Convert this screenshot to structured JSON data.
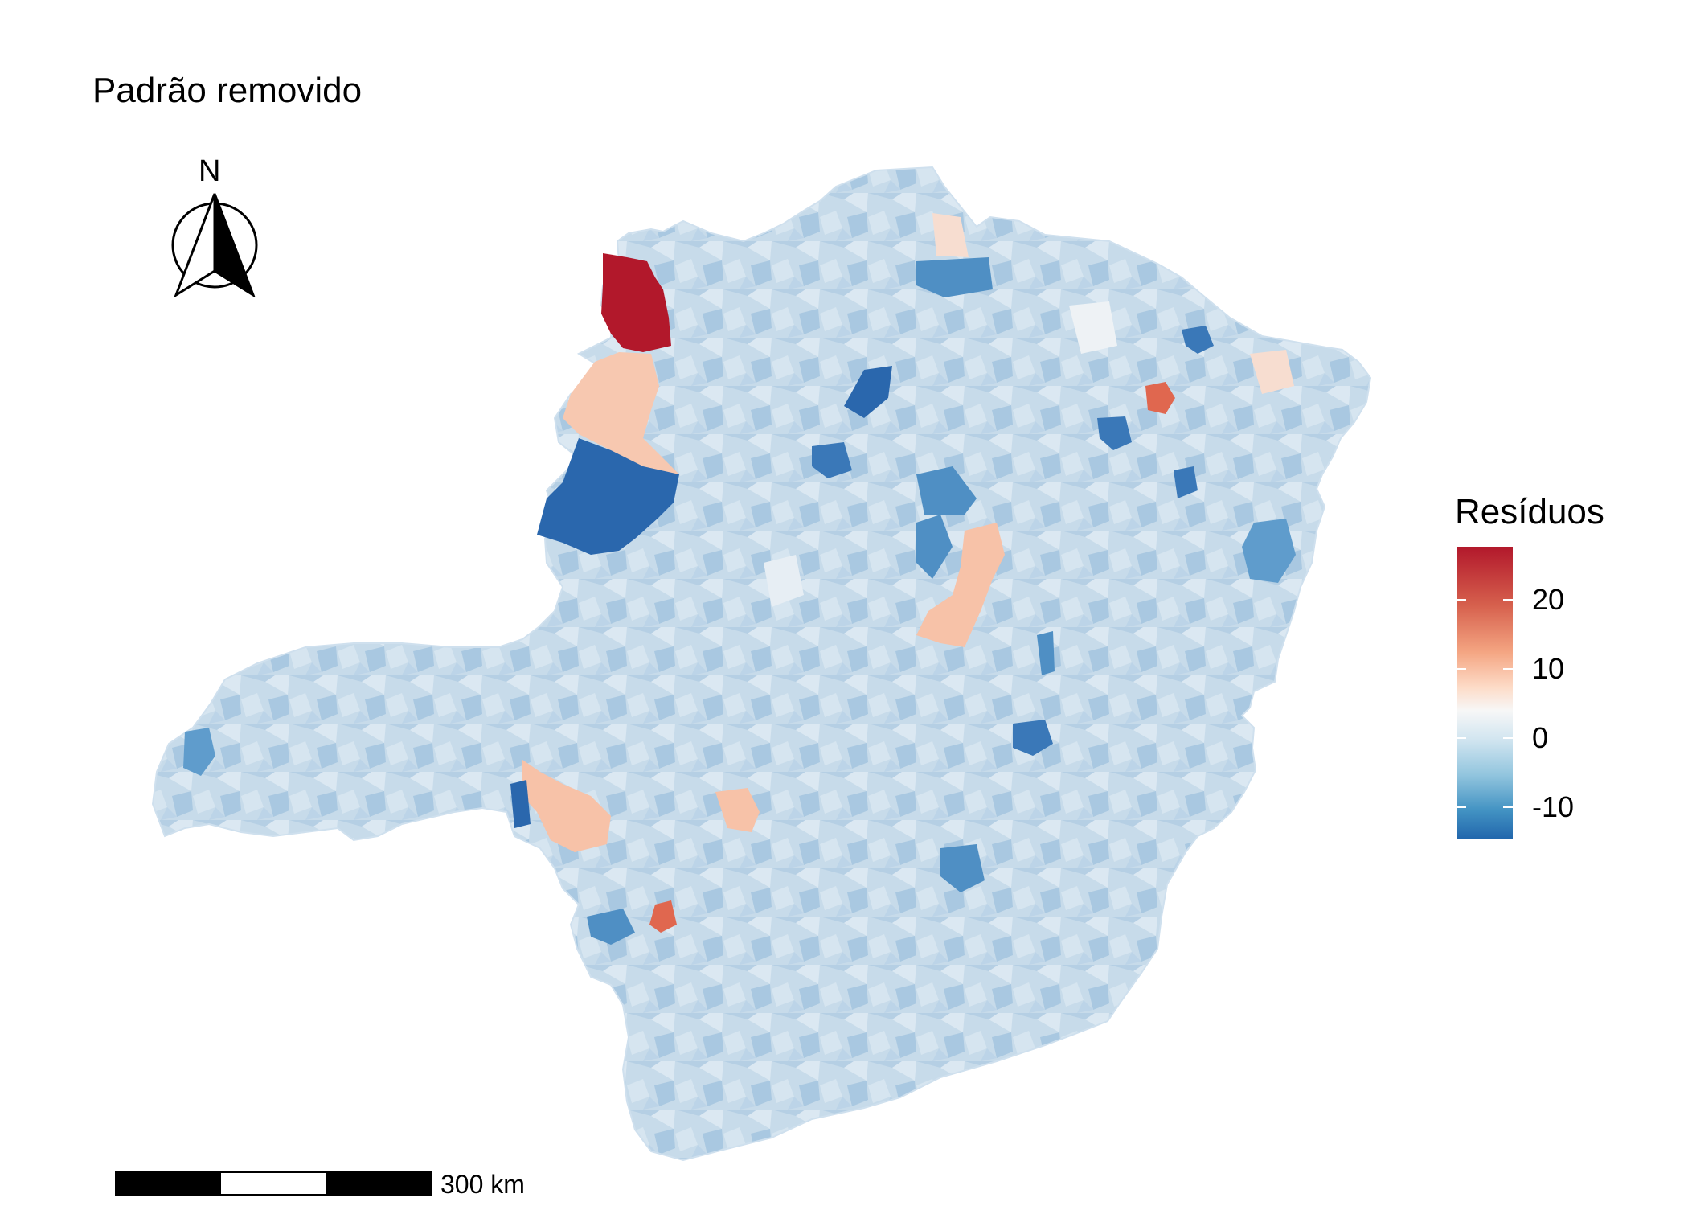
{
  "title": "Padrão removido",
  "north_arrow": {
    "label": "N",
    "icon": "north-arrow-icon"
  },
  "legend": {
    "title": "Resíduos",
    "labels": [
      "20",
      "10",
      "0",
      "-10"
    ],
    "colors": [
      "#b2182b",
      "#d6604d",
      "#f4a582",
      "#fddbc7",
      "#f7f7f7",
      "#d1e5f0",
      "#92c5de",
      "#4393c3",
      "#2166ac"
    ]
  },
  "scale_bar": {
    "label": "300 km"
  },
  "map": {
    "highlight_colors": {
      "dark_red": "#b2182b",
      "red": "#e0674f",
      "salmon": "#f7c2a8",
      "pale": "#e7eef4",
      "light_blue": "#c9dceb",
      "mid_blue": "#8fbad9",
      "blue": "#4f8fc4",
      "dark_blue": "#2a67ad"
    }
  }
}
